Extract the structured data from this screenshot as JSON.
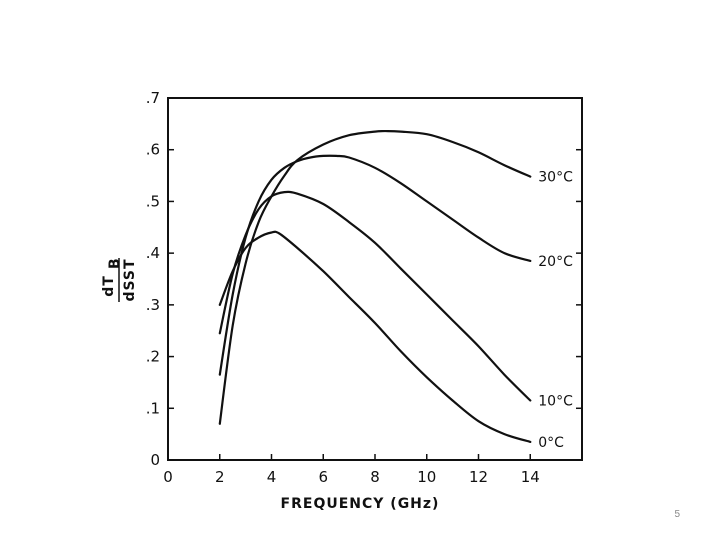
{
  "page": {
    "number": "5"
  },
  "chart_data": {
    "type": "line",
    "title": "",
    "xlabel": "FREQUENCY (GHz)",
    "ylabel_numerator": "dT",
    "ylabel_subscript": "B",
    "ylabel_denominator": "dSST",
    "xlim": [
      0,
      16
    ],
    "ylim": [
      0,
      0.7
    ],
    "xticks": [
      0,
      2,
      4,
      6,
      8,
      10,
      12,
      14
    ],
    "xtick_labels": [
      "0",
      "2",
      "4",
      "6",
      "8",
      "10",
      "12",
      "14"
    ],
    "yticks": [
      0,
      0.1,
      0.2,
      0.3,
      0.4,
      0.5,
      0.6,
      0.7
    ],
    "ytick_labels": [
      "0",
      ".1",
      ".2",
      ".3",
      ".4",
      ".5",
      ".6",
      ".7"
    ],
    "grid": false,
    "series": [
      {
        "name": "0°C",
        "x": [
          2,
          2.5,
          3,
          3.5,
          4,
          4.3,
          5,
          6,
          7,
          8,
          9,
          10,
          11,
          12,
          13,
          14
        ],
        "values": [
          0.3,
          0.365,
          0.41,
          0.43,
          0.44,
          0.438,
          0.41,
          0.365,
          0.315,
          0.265,
          0.21,
          0.16,
          0.115,
          0.075,
          0.05,
          0.035
        ]
      },
      {
        "name": "10°C",
        "x": [
          2,
          2.5,
          3,
          3.5,
          4,
          4.5,
          5,
          6,
          7,
          8,
          9,
          10,
          11,
          12,
          13,
          14
        ],
        "values": [
          0.245,
          0.36,
          0.435,
          0.485,
          0.51,
          0.518,
          0.515,
          0.495,
          0.46,
          0.42,
          0.37,
          0.32,
          0.27,
          0.22,
          0.165,
          0.115
        ]
      },
      {
        "name": "20°C",
        "x": [
          2,
          2.5,
          3,
          3.5,
          4,
          4.5,
          5,
          5.5,
          6,
          6.5,
          7,
          8,
          9,
          10,
          11,
          12,
          13,
          14
        ],
        "values": [
          0.165,
          0.32,
          0.43,
          0.5,
          0.542,
          0.565,
          0.578,
          0.585,
          0.588,
          0.588,
          0.585,
          0.565,
          0.535,
          0.5,
          0.465,
          0.43,
          0.4,
          0.385
        ]
      },
      {
        "name": "30°C",
        "x": [
          2,
          2.5,
          3,
          3.5,
          4,
          4.5,
          5,
          6,
          7,
          8,
          8.5,
          9,
          10,
          11,
          12,
          13,
          14
        ],
        "values": [
          0.07,
          0.26,
          0.38,
          0.46,
          0.51,
          0.55,
          0.58,
          0.61,
          0.628,
          0.635,
          0.636,
          0.635,
          0.63,
          0.615,
          0.595,
          0.57,
          0.548
        ]
      }
    ]
  }
}
